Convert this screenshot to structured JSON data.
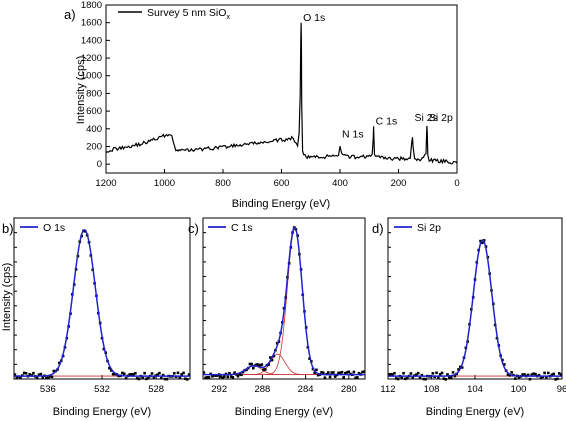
{
  "chart_data": [
    {
      "panel": "a)",
      "type": "line",
      "legend": [
        "Survey 5 nm SiO",
        "x"
      ],
      "xlabel": "Binding Energy (eV)",
      "ylabel": "Intensity (cps)",
      "xlim": [
        1200,
        0
      ],
      "ylim": [
        -100,
        1800
      ],
      "x_reversed": true,
      "xticks": [
        1200,
        1000,
        800,
        600,
        400,
        200,
        0
      ],
      "yticks": [
        0,
        200,
        400,
        600,
        800,
        1000,
        1200,
        1400,
        1600,
        1800
      ],
      "series": [
        {
          "x": [
            1200,
            1170,
            1140,
            1110,
            1080,
            1050,
            1020,
            1000,
            985,
            975,
            965,
            950,
            900,
            850,
            800,
            750,
            700,
            650,
            610,
            580,
            565,
            555,
            545,
            540,
            536,
            534,
            533,
            532,
            531,
            528,
            520,
            500,
            460,
            420,
            405,
            400,
            395,
            380,
            340,
            300,
            290,
            286,
            285,
            284,
            282,
            275,
            250,
            200,
            170,
            160,
            155,
            152,
            150,
            145,
            130,
            115,
            106,
            104,
            103,
            102,
            100,
            95,
            80,
            50,
            20,
            0
          ],
          "y": [
            150,
            170,
            190,
            210,
            230,
            260,
            300,
            320,
            340,
            320,
            180,
            150,
            160,
            175,
            195,
            210,
            230,
            250,
            270,
            280,
            300,
            250,
            200,
            350,
            800,
            1400,
            1600,
            1400,
            700,
            150,
            90,
            80,
            80,
            95,
            110,
            200,
            110,
            85,
            80,
            90,
            110,
            280,
            430,
            320,
            100,
            80,
            70,
            60,
            65,
            80,
            250,
            320,
            180,
            60,
            55,
            60,
            120,
            350,
            440,
            380,
            120,
            50,
            40,
            35,
            20,
            10
          ]
        }
      ],
      "annotations": [
        {
          "text": "O 1s",
          "x": 533,
          "y": 1620
        },
        {
          "text": "N 1s",
          "x": 400,
          "y": 300
        },
        {
          "text": "C 1s",
          "x": 285,
          "y": 450
        },
        {
          "text": "Si 2s",
          "x": 152,
          "y": 490
        },
        {
          "text": "Si 2p",
          "x": 103,
          "y": 490
        }
      ]
    },
    {
      "panel": "b)",
      "type": "scatter",
      "legend": "O 1s",
      "xlabel": "Binding Energy (eV)",
      "ylabel": "Intensity (cps)",
      "xlim": [
        538.5,
        525.5
      ],
      "x_reversed": true,
      "xticks": [
        536,
        532,
        528
      ],
      "ylim": [
        0,
        1.1
      ],
      "peaks": [
        {
          "center": 533.3,
          "height": 1.0,
          "fwhm": 1.9
        }
      ],
      "baseline": 0.02
    },
    {
      "panel": "c)",
      "type": "scatter",
      "legend": "C 1s",
      "xlabel": "Binding Energy (eV)",
      "xlim": [
        293.5,
        278.5
      ],
      "x_reversed": true,
      "xticks": [
        292,
        288,
        284,
        280
      ],
      "ylim": [
        0,
        1.1
      ],
      "peaks": [
        {
          "center": 285.0,
          "height": 1.0,
          "fwhm": 1.6
        },
        {
          "center": 286.6,
          "height": 0.14,
          "fwhm": 1.6
        },
        {
          "center": 288.8,
          "height": 0.06,
          "fwhm": 1.7
        }
      ],
      "baseline": 0.03
    },
    {
      "panel": "d)",
      "type": "scatter",
      "legend": "Si 2p",
      "xlabel": "Binding Energy (eV)",
      "xlim": [
        112,
        96
      ],
      "x_reversed": true,
      "xticks": [
        112,
        108,
        104,
        100,
        96
      ],
      "ylim": [
        0,
        1.1
      ],
      "peaks": [
        {
          "center": 103.3,
          "height": 0.93,
          "fwhm": 2.0
        }
      ],
      "baseline": 0.02
    }
  ]
}
